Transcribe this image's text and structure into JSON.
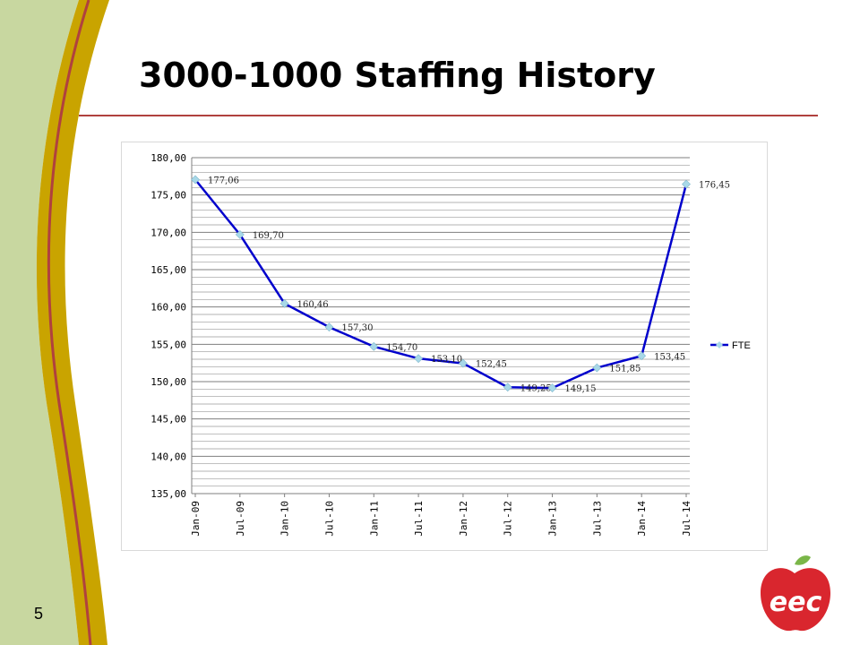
{
  "slide": {
    "title": "3000-1000 Staffing History",
    "page_number": "5",
    "logo_text": "eec"
  },
  "colors": {
    "sidebar_green": "#c8d7a0",
    "stripe_gold": "#c9a400",
    "stripe_red": "#b0413e",
    "series_line": "#0000cc",
    "marker": "#a8d8e8",
    "logo_red": "#d9262e",
    "logo_green": "#7ab648"
  },
  "chart_data": {
    "type": "line",
    "categories": [
      "Jan-09",
      "Jul-09",
      "Jan-10",
      "Jul-10",
      "Jan-11",
      "Jul-11",
      "Jan-12",
      "Jul-12",
      "Jan-13",
      "Jul-13",
      "Jan-14",
      "Jul-14"
    ],
    "series": [
      {
        "name": "FTE",
        "values": [
          177.06,
          169.7,
          160.46,
          157.3,
          154.7,
          153.1,
          152.45,
          149.25,
          149.15,
          151.85,
          153.45,
          176.45
        ]
      }
    ],
    "data_labels": [
      "177,06",
      "169,70",
      "160,46",
      "157,30",
      "154,70",
      "153,10",
      "152,45",
      "149,25",
      "149,15",
      "151,85",
      "153,45",
      "176,45"
    ],
    "y_tick_labels": [
      "135,00",
      "140,00",
      "145,00",
      "150,00",
      "155,00",
      "160,00",
      "165,00",
      "170,00",
      "175,00",
      "180,00"
    ],
    "ylim": [
      135,
      180
    ],
    "y_major_step": 5,
    "y_minor_step": 1,
    "grid": true,
    "legend": "right",
    "title": "",
    "xlabel": "",
    "ylabel": ""
  }
}
